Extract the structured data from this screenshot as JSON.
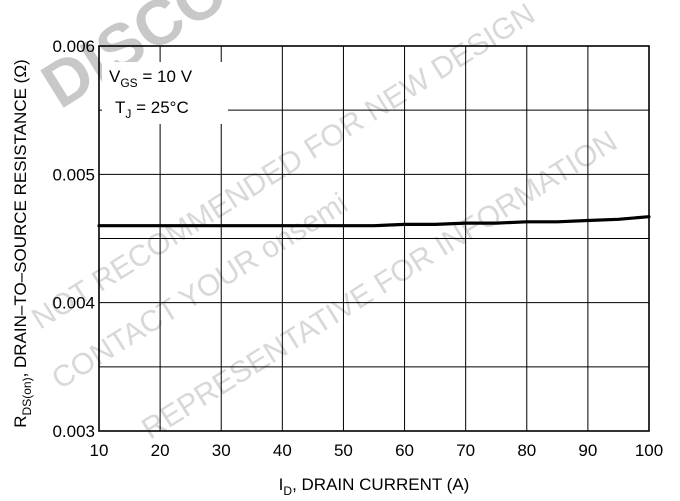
{
  "chart_data": {
    "type": "line",
    "xlabel": {
      "main": "I",
      "sub": "D",
      "rest": ", DRAIN CURRENT (A)"
    },
    "ylabel": {
      "main": "R",
      "sub": "DS(on)",
      "rest": ", DRAIN–TO–SOURCE RESISTANCE (Ω)"
    },
    "xlim": [
      10,
      100
    ],
    "ylim": [
      0.003,
      0.006
    ],
    "x_ticks": [
      10,
      20,
      30,
      40,
      50,
      60,
      70,
      80,
      90,
      100
    ],
    "x_tick_labels": [
      "10",
      "20",
      "30",
      "40",
      "50",
      "60",
      "70",
      "80",
      "90",
      "100"
    ],
    "y_ticks": [
      0.003,
      0.004,
      0.005,
      0.006
    ],
    "y_tick_labels": [
      "0.003",
      "0.004",
      "0.005",
      "0.006"
    ],
    "grid": true,
    "annotations": [
      {
        "main": "V",
        "sub": "GS",
        "rest": " = 10 V"
      },
      {
        "main": "T",
        "sub": "J",
        "rest": " = 25°C"
      }
    ],
    "series": [
      {
        "x": [
          10,
          20,
          30,
          40,
          50,
          55,
          60,
          65,
          70,
          75,
          80,
          85,
          90,
          95,
          100
        ],
        "y": [
          0.0046,
          0.0046,
          0.0046,
          0.0046,
          0.0046,
          0.0046,
          0.00461,
          0.00461,
          0.00462,
          0.00462,
          0.00463,
          0.00463,
          0.00464,
          0.00465,
          0.00467
        ]
      }
    ]
  },
  "watermark": {
    "lines": [
      "DISCONTINUED",
      "NOT RECOMMENDED FOR NEW DESIGN",
      "CONTACT YOUR onsemi",
      "REPRESENTATIVE FOR INFORMATION"
    ]
  }
}
